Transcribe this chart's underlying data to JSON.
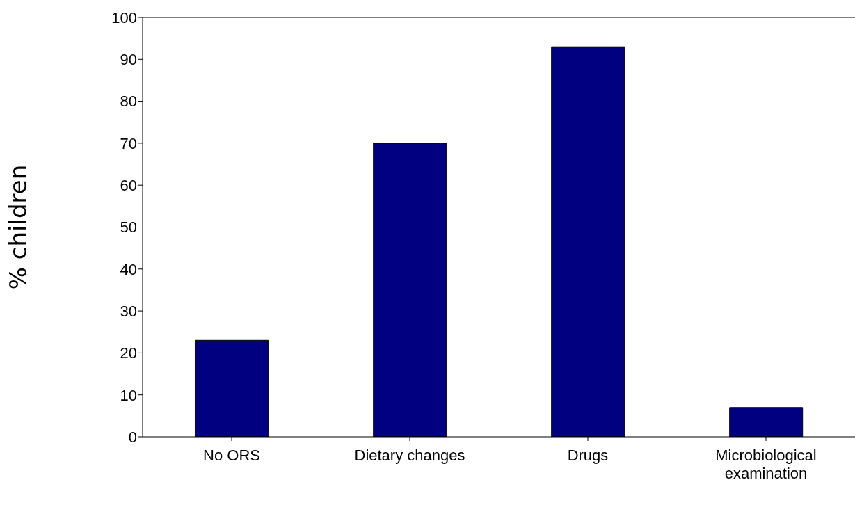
{
  "chart_data": {
    "type": "bar",
    "ylabel": "% children",
    "categories": [
      "No ORS",
      "Dietary changes",
      "Drugs",
      "Microbiological examination"
    ],
    "values": [
      23,
      70,
      93,
      7
    ],
    "color": "#000080",
    "ylim": [
      0,
      100
    ],
    "yticks": [
      0,
      10,
      20,
      30,
      40,
      50,
      60,
      70,
      80,
      90,
      100
    ],
    "grid": false,
    "legend": false
  }
}
